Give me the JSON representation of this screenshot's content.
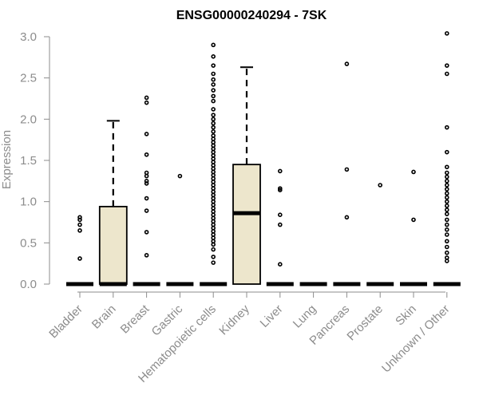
{
  "chart_data": {
    "type": "box",
    "title": "ENSG00000240294 - 7SK",
    "xlabel": "",
    "ylabel": "Expression",
    "ylim": [
      0,
      3.0
    ],
    "yticks": [
      "0.0",
      "0.5",
      "1.0",
      "1.5",
      "2.0",
      "2.5",
      "3.0"
    ],
    "box_fill": "#ede6cc",
    "categories": [
      "Bladder",
      "Brain",
      "Breast",
      "Gastric",
      "Hematopoietic cells",
      "Kidney",
      "Liver",
      "Lung",
      "Pancreas",
      "Prostate",
      "Skin",
      "Unknown / Other"
    ],
    "boxes": [
      {
        "category": "Bladder",
        "q1": 0,
        "median": 0,
        "q3": 0,
        "whisker_low": 0,
        "whisker_high": 0,
        "outliers": [
          0.31,
          0.65,
          0.72,
          0.78,
          0.81
        ]
      },
      {
        "category": "Brain",
        "q1": 0,
        "median": 0,
        "q3": 0.94,
        "whisker_low": 0,
        "whisker_high": 1.98,
        "outliers": []
      },
      {
        "category": "Breast",
        "q1": 0,
        "median": 0,
        "q3": 0,
        "whisker_low": 0,
        "whisker_high": 0,
        "outliers": [
          0.35,
          0.63,
          0.89,
          1.04,
          1.22,
          1.25,
          1.31,
          1.35,
          1.57,
          1.82,
          2.2,
          2.26
        ]
      },
      {
        "category": "Gastric",
        "q1": 0,
        "median": 0,
        "q3": 0,
        "whisker_low": 0,
        "whisker_high": 0,
        "outliers": [
          1.31
        ]
      },
      {
        "category": "Hematopoietic cells",
        "q1": 0,
        "median": 0,
        "q3": 0,
        "whisker_low": 0,
        "whisker_high": 0,
        "outliers": [
          0.26,
          0.33,
          0.42,
          0.48,
          0.52,
          0.56,
          0.6,
          0.64,
          0.68,
          0.72,
          0.76,
          0.8,
          0.84,
          0.88,
          0.92,
          0.96,
          1.0,
          1.04,
          1.08,
          1.12,
          1.16,
          1.2,
          1.24,
          1.28,
          1.32,
          1.36,
          1.4,
          1.44,
          1.48,
          1.52,
          1.56,
          1.6,
          1.64,
          1.68,
          1.72,
          1.76,
          1.8,
          1.85,
          1.9,
          1.95,
          2.0,
          2.05,
          2.12,
          2.22,
          2.28,
          2.35,
          2.42,
          2.48,
          2.55,
          2.65,
          2.76,
          2.9
        ]
      },
      {
        "category": "Kidney",
        "q1": 0,
        "median": 0.86,
        "q3": 1.45,
        "whisker_low": 0,
        "whisker_high": 2.63,
        "outliers": []
      },
      {
        "category": "Liver",
        "q1": 0,
        "median": 0,
        "q3": 0,
        "whisker_low": 0,
        "whisker_high": 0,
        "outliers": [
          0.24,
          0.72,
          0.84,
          1.14,
          1.16,
          1.37
        ]
      },
      {
        "category": "Lung",
        "q1": 0,
        "median": 0,
        "q3": 0,
        "whisker_low": 0,
        "whisker_high": 0,
        "outliers": []
      },
      {
        "category": "Pancreas",
        "q1": 0,
        "median": 0,
        "q3": 0,
        "whisker_low": 0,
        "whisker_high": 0,
        "outliers": [
          0.81,
          1.39,
          2.67
        ]
      },
      {
        "category": "Prostate",
        "q1": 0,
        "median": 0,
        "q3": 0,
        "whisker_low": 0,
        "whisker_high": 0,
        "outliers": [
          1.2
        ]
      },
      {
        "category": "Skin",
        "q1": 0,
        "median": 0,
        "q3": 0,
        "whisker_low": 0,
        "whisker_high": 0,
        "outliers": [
          0.78,
          1.36
        ]
      },
      {
        "category": "Unknown / Other",
        "q1": 0,
        "median": 0,
        "q3": 0,
        "whisker_low": 0,
        "whisker_high": 0,
        "outliers": [
          0.28,
          0.32,
          0.38,
          0.45,
          0.52,
          0.6,
          0.66,
          0.72,
          0.78,
          0.85,
          0.9,
          0.95,
          1.0,
          1.05,
          1.1,
          1.15,
          1.2,
          1.25,
          1.3,
          1.35,
          1.42,
          1.6,
          1.9,
          2.55,
          2.65,
          3.04
        ]
      }
    ]
  }
}
